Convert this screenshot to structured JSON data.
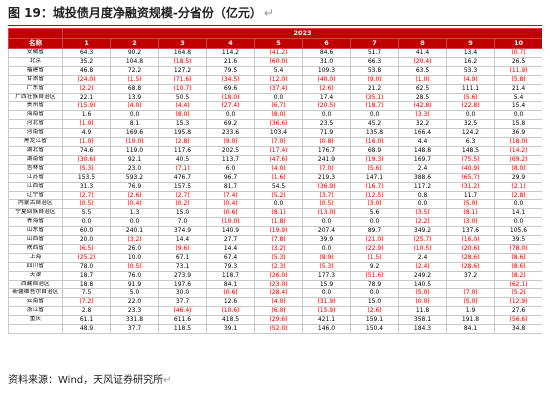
{
  "figure": {
    "title": "图 19：城投债月度净融资规模-分省份（亿元）",
    "title_mark": "↵",
    "source": "资料来源：Wind，天风证券研究所",
    "source_mark": "↵"
  },
  "table": {
    "year": "2023",
    "corner_label": "名称",
    "months": [
      "1",
      "2",
      "3",
      "4",
      "5",
      "6",
      "7",
      "8",
      "9",
      "10"
    ],
    "rows": [
      {
        "name": "安徽省",
        "values": [
          "64.3",
          "90.2",
          "164.8",
          "114.2",
          "(41.2)",
          "84.6",
          "51.7",
          "41.4",
          "13.4",
          "(0.7)"
        ]
      },
      {
        "name": "北京",
        "values": [
          "35.2",
          "104.8",
          "(18.5)",
          "21.6",
          "(60.0)",
          "31.0",
          "66.3",
          "(20.4)",
          "16.2",
          "26.5"
        ]
      },
      {
        "name": "福建省",
        "values": [
          "46.8",
          "72.2",
          "127.2",
          "79.5",
          "5.4",
          "109.3",
          "53.8",
          "63.5",
          "53.3",
          "(11.9)"
        ]
      },
      {
        "name": "甘肃省",
        "values": [
          "(24.0)",
          "(1.5)",
          "(71.6)",
          "(34.5)",
          "(12.0)",
          "(40.0)",
          "(9.0)",
          "(1.0)",
          "(4.9)",
          "(5.8)"
        ]
      },
      {
        "name": "广东省",
        "values": [
          "(2.2)",
          "68.8",
          "(10.7)",
          "69.6",
          "(37.4)",
          "(2.6)",
          "21.2",
          "62.5",
          "111.1",
          "21.4"
        ]
      },
      {
        "name": "广西壮族自治区",
        "values": [
          "22.1",
          "13.9",
          "50.5",
          "(18.0)",
          "0.0",
          "17.4",
          "(35.1)",
          "28.5",
          "(5.6)",
          "5.4"
        ]
      },
      {
        "name": "贵州省",
        "values": [
          "(15.9)",
          "(4.0)",
          "(4.4)",
          "(27.4)",
          "(6.7)",
          "(20.5)",
          "(18.7)",
          "(42.8)",
          "(22.8)",
          "15.4"
        ]
      },
      {
        "name": "海南省",
        "values": [
          "1.6",
          "0.0",
          "(8.0)",
          "0.0",
          "(8.0)",
          "0.0",
          "0.0",
          "(3.3)",
          "0.0",
          "0.0"
        ]
      },
      {
        "name": "河北省",
        "values": [
          "(1.0)",
          "8.1",
          "15.3",
          "69.2",
          "(36.6)",
          "23.5",
          "45.2",
          "32.2",
          "32.5",
          "15.8"
        ]
      },
      {
        "name": "河南省",
        "values": [
          "4.9",
          "169.6",
          "195.8",
          "233.6",
          "103.4",
          "71.9",
          "135.8",
          "166.4",
          "124.2",
          "36.9"
        ]
      },
      {
        "name": "黑龙江省",
        "values": [
          "(1.0)",
          "(10.0)",
          "(2.8)",
          "(9.0)",
          "(7.0)",
          "(0.8)",
          "(16.0)",
          "4.4",
          "6.3",
          "(18.0)"
        ]
      },
      {
        "name": "湖北省",
        "values": [
          "74.6",
          "119.0",
          "117.6",
          "202.5",
          "(17.4)",
          "176.7",
          "68.9",
          "148.8",
          "148.5",
          "(14.2)"
        ]
      },
      {
        "name": "湖南省",
        "values": [
          "(30.6)",
          "92.1",
          "40.5",
          "113.7",
          "(47.6)",
          "241.9",
          "(19.3)",
          "169.7",
          "(75.5)",
          "(69.2)"
        ]
      },
      {
        "name": "吉林省",
        "values": [
          "(5.3)",
          "23.0",
          "(7.1)",
          "6.0",
          "(4.0)",
          "(7.0)",
          "(5.6)",
          "2.4",
          "(40.9)",
          "(8.0)"
        ]
      },
      {
        "name": "江苏省",
        "values": [
          "153.5",
          "593.2",
          "476.7",
          "96.7",
          "(1.6)",
          "219.3",
          "147.1",
          "388.6",
          "(65.7)",
          "29.9"
        ]
      },
      {
        "name": "江西省",
        "values": [
          "31.3",
          "76.9",
          "157.5",
          "81.7",
          "54.5",
          "(36.9)",
          "(16.7)",
          "117.2",
          "(31.2)",
          "(2.1)"
        ]
      },
      {
        "name": "辽宁省",
        "values": [
          "(2.7)",
          "(2.6)",
          "(2.7)",
          "(7.4)",
          "(5.2)",
          "(3.7)",
          "(12.5)",
          "0.8",
          "11.7",
          "(2.8)"
        ]
      },
      {
        "name": "内蒙古自治区",
        "values": [
          "(0.5)",
          "(0.4)",
          "(0.2)",
          "(0.4)",
          "0.0",
          "(0.5)",
          "(3.0)",
          "0.0",
          "(5.0)",
          "0.0"
        ]
      },
      {
        "name": "宁夏回族自治区",
        "values": [
          "5.5",
          "1.3",
          "15.0",
          "(0.6)",
          "(8.1)",
          "(13.0)",
          "5.6",
          "(3.5)",
          "(8.1)",
          "14.1"
        ]
      },
      {
        "name": "青海省",
        "values": [
          "0.0",
          "0.0",
          "7.0",
          "(10.0)",
          "(1.8)",
          "0.0",
          "0.0",
          "(2.2)",
          "(3.0)",
          "0.0"
        ]
      },
      {
        "name": "山东省",
        "values": [
          "60.0",
          "240.1",
          "374.9",
          "140.9",
          "(19.9)",
          "207.4",
          "89.7",
          "349.2",
          "137.6",
          "105.6"
        ]
      },
      {
        "name": "山西省",
        "values": [
          "20.0",
          "(3.2)",
          "14.4",
          "27.7",
          "(7.8)",
          "39.9",
          "(21.0)",
          "(25.7)",
          "(16.0)",
          "39.5"
        ]
      },
      {
        "name": "陕西省",
        "values": [
          "(6.5)",
          "26.0",
          "(9.6)",
          "14.4",
          "(3.2)",
          "0.0",
          "(22.9)",
          "(10.5)",
          "(20.6)",
          "(78.0)"
        ]
      },
      {
        "name": "上海",
        "values": [
          "(25.2)",
          "10.0",
          "67.1",
          "67.4",
          "(5.3)",
          "(8.9)",
          "(1.5)",
          "2.4",
          "(28.6)",
          "(8.6)"
        ]
      },
      {
        "name": "四川省",
        "values": [
          "78.0",
          "(0.5)",
          "73.1",
          "79.3",
          "(2.3)",
          "(5.3)",
          "9.2",
          "(2.4)",
          "(28.6)",
          "(8.6)"
        ]
      },
      {
        "name": "天津",
        "values": [
          "18.7",
          "76.0",
          "273.9",
          "118.7",
          "(26.0)",
          "177.3",
          "(51.6)",
          "249.2",
          "37.2",
          "(8.2)"
        ]
      },
      {
        "name": "西藏自治区",
        "values": [
          "18.8",
          "91.9",
          "197.6",
          "84.1",
          "(23.0)",
          "15.9",
          "78.9",
          "140.5",
          "",
          "(62.1)"
        ]
      },
      {
        "name": "新疆维吾尔自治区",
        "values": [
          "7.5",
          "5.0",
          "30.0",
          "(0.6)",
          "(28.4)",
          "0.0",
          "0.0",
          "(5.0)",
          "(7.0)",
          "(5.2)"
        ]
      },
      {
        "name": "云南省",
        "values": [
          "(7.2)",
          "22.0",
          "37.7",
          "12.6",
          "(4.0)",
          "(31.9)",
          "15.0",
          "(0.0)",
          "(5.0)",
          "(12.9)"
        ]
      },
      {
        "name": "浙江省",
        "values": [
          "2.8",
          "23.3",
          "(46.4)",
          "(10.6)",
          "(6.0)",
          "(15.9)",
          "(2.6)",
          "11.8",
          "1.9",
          "27.6"
        ]
      },
      {
        "name": "重庆",
        "values": [
          "61.1",
          "331.8",
          "611.6",
          "418.5",
          "(29.6)",
          "421.1",
          "159.1",
          "358.1",
          "191.8",
          "(56.6)"
        ]
      },
      {
        "name": "",
        "values": [
          "48.9",
          "37.7",
          "118.5",
          "39.1",
          "(52.0)",
          "146.0",
          "150.4",
          "184.3",
          "84.1",
          "34.8"
        ]
      }
    ]
  }
}
